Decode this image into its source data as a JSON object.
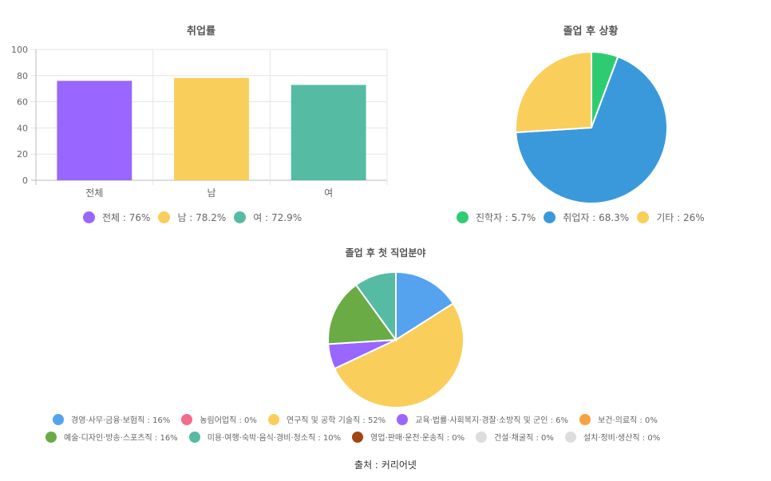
{
  "chart_data": [
    {
      "type": "bar",
      "title": "취업률",
      "categories": [
        "전체",
        "남",
        "여"
      ],
      "values": [
        76,
        78.2,
        72.9
      ],
      "colors": [
        "#9966ff",
        "#f9ce5a",
        "#55bba3"
      ],
      "ylim": [
        0,
        100
      ],
      "yticks": [
        "0",
        "20",
        "40",
        "60",
        "80",
        "100"
      ],
      "grid": true,
      "legend_position": "bottom",
      "legend": [
        "전체 : 76%",
        "남 : 78.2%",
        "여 : 72.9%"
      ]
    },
    {
      "type": "pie",
      "title": "졸업 후 상황",
      "labels": [
        "진학자",
        "취업자",
        "기타"
      ],
      "values": [
        5.7,
        68.3,
        26
      ],
      "colors": [
        "#2ecc71",
        "#3a99db",
        "#f9ce5a"
      ],
      "legend_position": "bottom",
      "legend": [
        "진학자 : 5.7%",
        "취업자 : 68.3%",
        "기타 : 26%"
      ]
    },
    {
      "type": "pie",
      "title": "졸업 후 첫 직업분야",
      "labels": [
        "경영·사무·금융·보험직",
        "농림어업직",
        "연구직 및 공학 기술직",
        "교육·법률·사회복지·경찰·소방직 및 군인",
        "보건·의료직",
        "예술·디자인·방송·스포츠직",
        "미용·여행·숙박·음식·경비·청소직",
        "영업·판매·운전·운송직",
        "건설·채굴직",
        "설치·정비·생산직"
      ],
      "values": [
        16,
        0,
        52,
        6,
        0,
        16,
        10,
        0,
        0,
        0
      ],
      "colors": [
        "#55a3ef",
        "#f56b8c",
        "#f9ce5a",
        "#9966ff",
        "#f9a03f",
        "#6aab45",
        "#55bba3",
        "#a0450f",
        "#dddddd",
        "#dddddd"
      ],
      "legend_position": "bottom",
      "legend_row1": [
        "경영·사무·금융·보험직 : 16%",
        "농림어업직 : 0%",
        "연구직 및 공학 기술직 : 52%",
        "교육·법률·사회복지·경찰·소방직 및 군인 : 6%",
        "보건·의료직 : 0%"
      ],
      "legend_row2": [
        "예술·디자인·방송·스포츠직 : 16%",
        "미용·여행·숙박·음식·경비·청소직 : 10%",
        "영업·판매·운전·운송직 : 0%",
        "건설·채굴직 : 0%",
        "설치·정비·생산직 : 0%"
      ]
    }
  ],
  "source": "출처 : 커리어넷"
}
